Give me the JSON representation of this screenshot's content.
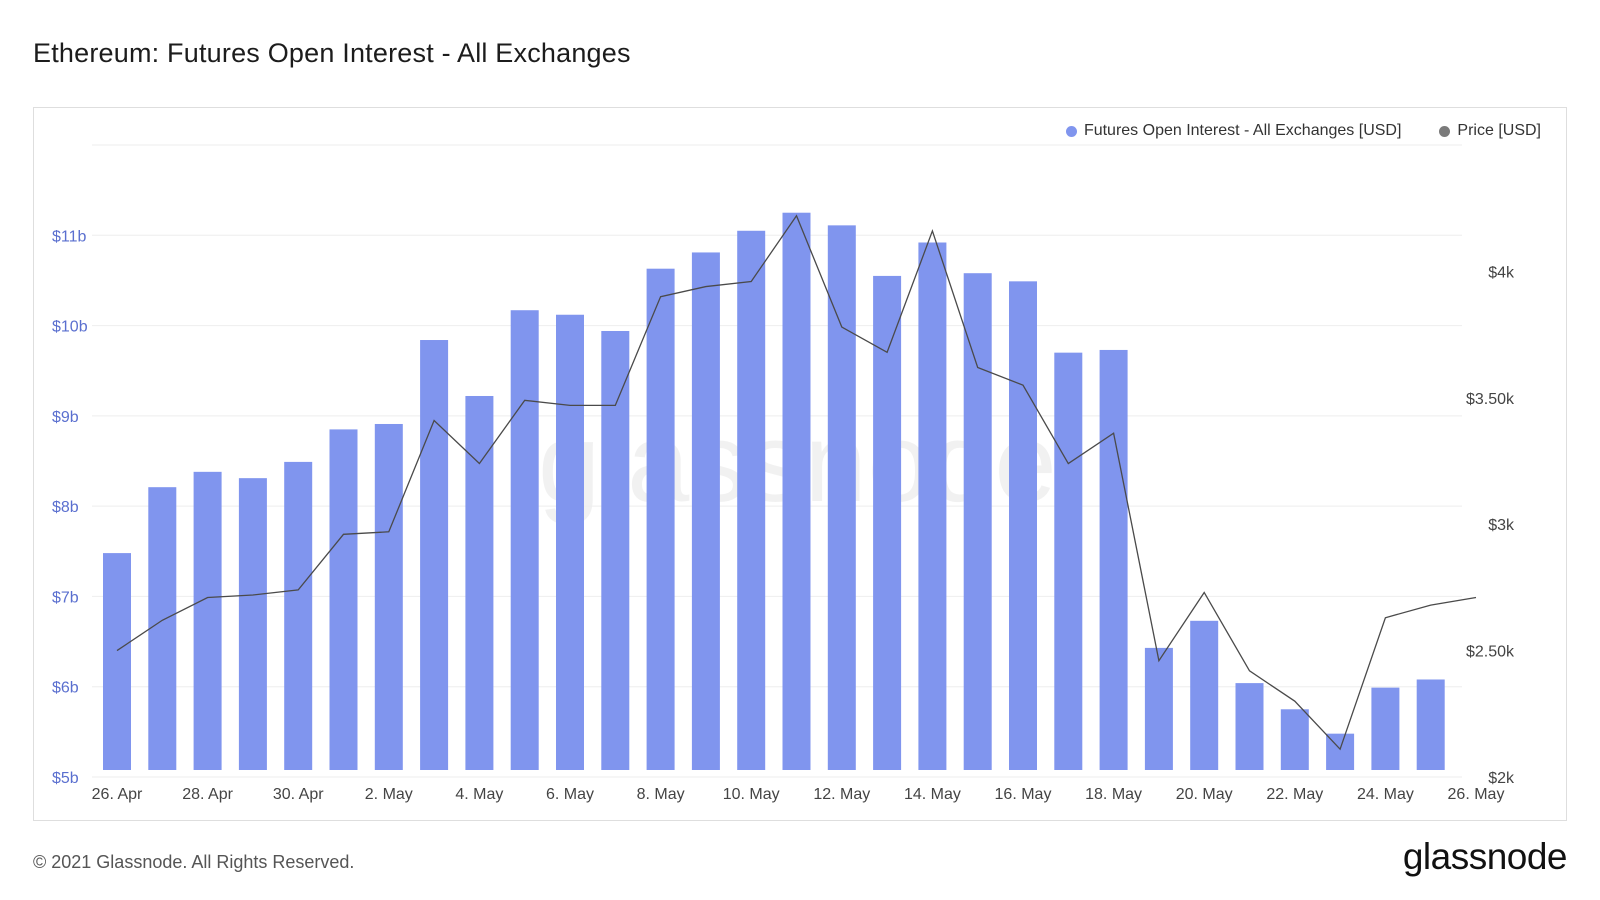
{
  "title": "Ethereum: Futures Open Interest - All Exchanges",
  "footer": "© 2021 Glassnode. All Rights Reserved.",
  "logo": "glassnode",
  "watermark": "glassnode",
  "colors": {
    "bars": "#8095ee",
    "price_line": "#4a4a4a",
    "left_axis": "#5a6fcf",
    "grid": "#eeeeee"
  },
  "chart_data": {
    "type": "bar",
    "categories": [
      "26. Apr",
      "27. Apr",
      "28. Apr",
      "29. Apr",
      "30. Apr",
      "1. May",
      "2. May",
      "3. May",
      "4. May",
      "5. May",
      "6. May",
      "7. May",
      "8. May",
      "9. May",
      "10. May",
      "11. May",
      "12. May",
      "13. May",
      "14. May",
      "15. May",
      "16. May",
      "17. May",
      "18. May",
      "19. May",
      "20. May",
      "21. May",
      "22. May",
      "23. May",
      "24. May",
      "25. May",
      "26. May"
    ],
    "x_tick_labels": [
      "26. Apr",
      "28. Apr",
      "30. Apr",
      "2. May",
      "4. May",
      "6. May",
      "8. May",
      "10. May",
      "12. May",
      "14. May",
      "16. May",
      "18. May",
      "20. May",
      "22. May",
      "24. May",
      "26. May"
    ],
    "series": [
      {
        "name": "Futures Open Interest - All Exchanges [USD]",
        "type": "bar",
        "axis": "left",
        "values": [
          7.48,
          8.21,
          8.38,
          8.31,
          8.49,
          8.85,
          8.91,
          9.84,
          9.22,
          10.17,
          10.12,
          9.94,
          10.63,
          10.81,
          11.05,
          11.25,
          11.11,
          10.55,
          10.92,
          10.58,
          10.49,
          9.7,
          9.73,
          6.43,
          6.73,
          6.04,
          5.75,
          5.48,
          5.99,
          6.08,
          null
        ]
      },
      {
        "name": "Price [USD]",
        "type": "line",
        "axis": "right",
        "values": [
          2500,
          2620,
          2710,
          2720,
          2740,
          2960,
          2970,
          3410,
          3240,
          3490,
          3470,
          3470,
          3900,
          3940,
          3960,
          4220,
          3780,
          3680,
          4160,
          3620,
          3550,
          3240,
          3360,
          2460,
          2730,
          2420,
          2300,
          2110,
          2630,
          2680,
          2710
        ]
      }
    ],
    "left_axis": {
      "ticks": [
        "$5b",
        "$6b",
        "$7b",
        "$8b",
        "$9b",
        "$10b",
        "$11b"
      ],
      "tick_values": [
        5,
        6,
        7,
        8,
        9,
        10,
        11
      ],
      "ylim": [
        5,
        12
      ]
    },
    "right_axis": {
      "ticks": [
        "$2k",
        "$2.50k",
        "$3k",
        "$3.50k",
        "$4k"
      ],
      "tick_values": [
        2000,
        2500,
        3000,
        3500,
        4000
      ],
      "ylim": [
        2000,
        4500
      ]
    },
    "legend": [
      "Futures Open Interest - All Exchanges [USD]",
      "Price [USD]"
    ],
    "legend_position": "top-right",
    "grid": true
  }
}
